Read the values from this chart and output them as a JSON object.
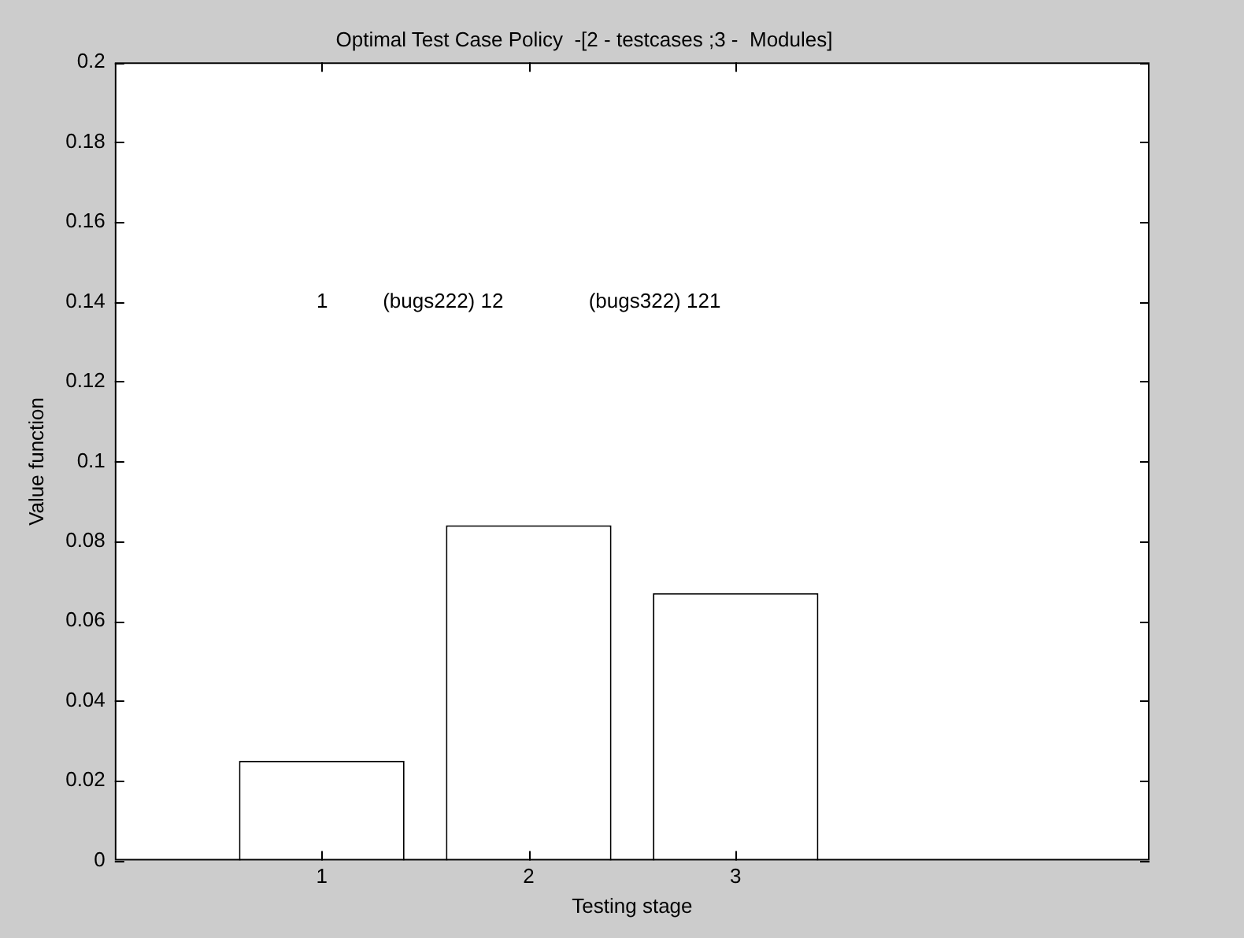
{
  "chart_data": {
    "type": "bar",
    "title": "Optimal Test Case Policy  -[2 - testcases ;3 -  Modules]",
    "xlabel": "Testing stage",
    "ylabel": "Value function",
    "x": [
      1,
      2,
      3
    ],
    "values": [
      0.025,
      0.084,
      0.067
    ],
    "color": "#ffffff",
    "xlim": [
      0,
      5
    ],
    "xticks": [
      1,
      2,
      3
    ],
    "ylim": [
      0,
      0.2
    ],
    "yticks": [
      0,
      0.02,
      0.04,
      0.06,
      0.08,
      0.1,
      0.12,
      0.14,
      0.16,
      0.18,
      0.2
    ],
    "annotations": [
      "1",
      "(bugs222) 12",
      "(bugs322) 121"
    ],
    "grid": false,
    "legend": false
  }
}
